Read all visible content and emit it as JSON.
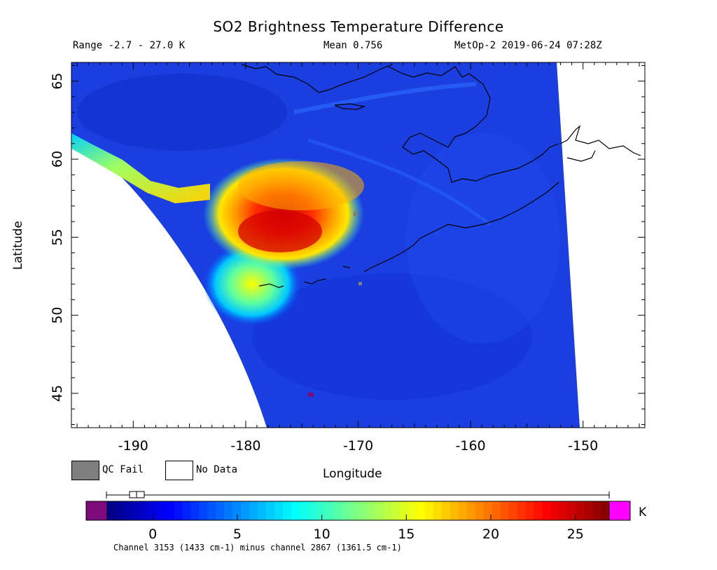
{
  "title": "SO2 Brightness Temperature Difference",
  "info": {
    "range": "Range -2.7 - 27.0 K",
    "mean": "Mean 0.756",
    "satellite_time": "MetOp-2 2019-06-24 07:28Z"
  },
  "axes": {
    "x_label": "Longitude",
    "y_label": "Latitude",
    "x_ticks": [
      "-190",
      "-180",
      "-170",
      "-160",
      "-150"
    ],
    "y_ticks": [
      "65",
      "60",
      "55",
      "50",
      "45"
    ],
    "x_tick_values": [
      -190,
      -180,
      -170,
      -160,
      -150
    ],
    "y_tick_values": [
      65,
      60,
      55,
      50,
      45
    ],
    "x_range": [
      -195.5,
      -144.5
    ],
    "y_range": [
      42.8,
      66.2
    ]
  },
  "legend": {
    "qc_fail": "QC Fail",
    "no_data": "No Data",
    "qc_fail_color": "#7f7f7f",
    "no_data_color": "#ffffff"
  },
  "colorbar": {
    "ticks": [
      "0",
      "5",
      "10",
      "15",
      "20",
      "25"
    ],
    "tick_values": [
      0,
      5,
      10,
      15,
      20,
      25
    ],
    "range": [
      -2.7,
      27.0
    ],
    "unit": "K",
    "caption": "Channel 3153 (1433 cm-1) minus channel 2867 (1361.5 cm-1)",
    "low_color": "#7d0a7a",
    "high_color": "#ff00ff",
    "colors": [
      "#000080",
      "#0000ff",
      "#0080ff",
      "#00ffff",
      "#80ff80",
      "#ffff00",
      "#ff8000",
      "#ff0000",
      "#800000"
    ]
  }
}
